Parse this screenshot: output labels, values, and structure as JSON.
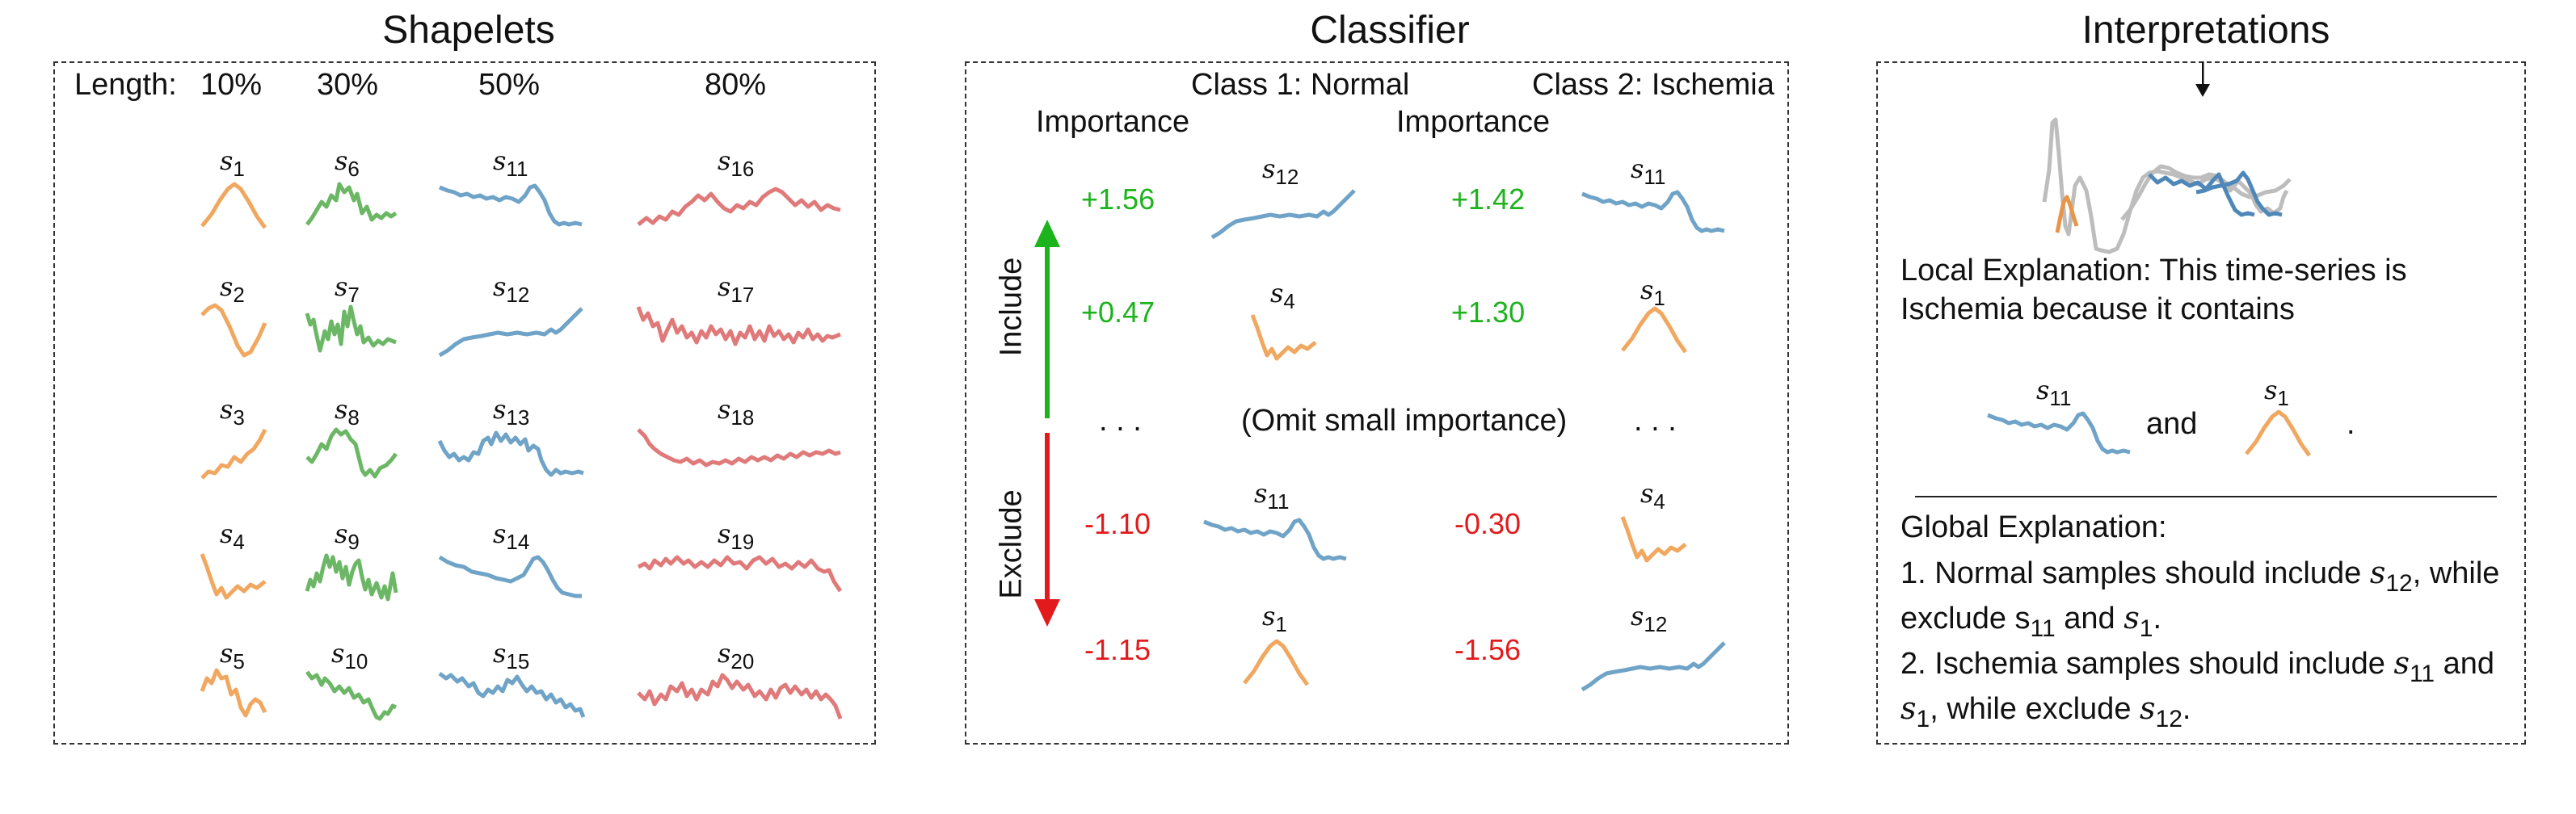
{
  "panels": {
    "shapelets": {
      "title": "Shapelets",
      "length_label": "Length:",
      "length_headers": [
        "10%",
        "30%",
        "50%",
        "80%"
      ]
    },
    "classifier": {
      "title": "Classifier",
      "class1_header": "Class 1: Normal",
      "class2_header": "Class 2: Ischemia",
      "importance_label": "Importance",
      "include_label": "Include",
      "exclude_label": "Exclude",
      "ellipsis": ". . .",
      "omit_label": "(Omit small importance)"
    },
    "interpretations": {
      "title": "Interpretations",
      "local_line1": "Local Explanation: This time-series is",
      "local_line2": "Ischemia because it contains",
      "and_word": "and",
      "period": ".",
      "global_title": "Global Explanation:",
      "g1_a": "1. Normal samples should include ",
      "g1_b": ", while",
      "g2_a": "exclude s",
      "g2_b": " and ",
      "g2_c": ".",
      "g3_a": "2. Ischemia samples should include ",
      "g3_b": " and",
      "g4_b": ", while exclude ",
      "g4_c": "."
    }
  },
  "shapelet_labels": {
    "s1": "1",
    "s2": "2",
    "s3": "3",
    "s4": "4",
    "s5": "5",
    "s6": "6",
    "s7": "7",
    "s8": "8",
    "s9": "9",
    "s10": "10",
    "s11": "11",
    "s12": "12",
    "s13": "13",
    "s14": "14",
    "s15": "15",
    "s16": "16",
    "s17": "17",
    "s18": "18",
    "s19": "19",
    "s20": "20"
  },
  "classifier_rows": [
    {
      "c1_value": "+1.56",
      "c1_shapelet": "12",
      "c2_value": "+1.42",
      "c2_shapelet": "11"
    },
    {
      "c1_value": "+0.47",
      "c1_shapelet": "4",
      "c2_value": "+1.30",
      "c2_shapelet": "1"
    },
    {
      "c1_value": "-1.10",
      "c1_shapelet": "11",
      "c2_value": "-0.30",
      "c2_shapelet": "4"
    },
    {
      "c1_value": "-1.15",
      "c1_shapelet": "1",
      "c2_value": "-1.56",
      "c2_shapelet": "12"
    }
  ],
  "colors": {
    "orange": "#f0a860",
    "green": "#6cb765",
    "blue": "#6fa3c7",
    "red": "#e07a7a",
    "gray": "#bdbdbd",
    "include_arrow": "#1db31d",
    "exclude_arrow": "#e31a1c"
  }
}
